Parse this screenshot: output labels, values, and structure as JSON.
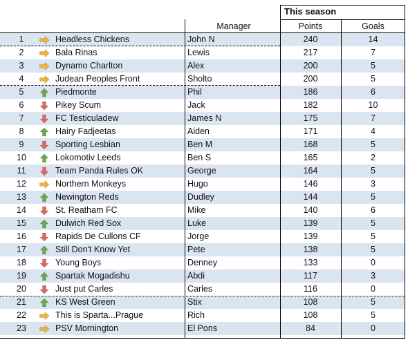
{
  "header": {
    "group_title": "This season",
    "columns": {
      "manager": "Manager",
      "points": "Points",
      "goals": "Goals"
    }
  },
  "colors": {
    "row_shade": "#dbe5f1",
    "arrow_same": "#f0b23c",
    "arrow_up": "#6aa84f",
    "arrow_down": "#e06666"
  },
  "rows": [
    {
      "pos": "1",
      "move": "same",
      "team": "Headless Chickens",
      "manager": "John N",
      "points": "240",
      "goals": "14"
    },
    {
      "pos": "2",
      "move": "same",
      "team": "Bala Rinas",
      "manager": "Lewis",
      "points": "217",
      "goals": "7"
    },
    {
      "pos": "3",
      "move": "same",
      "team": "Dynamo Charlton",
      "manager": "Alex",
      "points": "200",
      "goals": "5"
    },
    {
      "pos": "4",
      "move": "same",
      "team": "Judean Peoples Front",
      "manager": "Sholto",
      "points": "200",
      "goals": "5"
    },
    {
      "pos": "5",
      "move": "up",
      "team": "Piedmonte",
      "manager": "Phil",
      "points": "186",
      "goals": "6"
    },
    {
      "pos": "6",
      "move": "down",
      "team": "Pikey Scum",
      "manager": "Jack",
      "points": "182",
      "goals": "10"
    },
    {
      "pos": "7",
      "move": "down",
      "team": "FC Testiculadew",
      "manager": "James N",
      "points": "175",
      "goals": "7"
    },
    {
      "pos": "8",
      "move": "up",
      "team": "Hairy Fadjeetas",
      "manager": "Aiden",
      "points": "171",
      "goals": "4"
    },
    {
      "pos": "9",
      "move": "down",
      "team": "Sporting Lesbian",
      "manager": "Ben M",
      "points": "168",
      "goals": "5"
    },
    {
      "pos": "10",
      "move": "up",
      "team": "Lokomotiv Leeds",
      "manager": "Ben S",
      "points": "165",
      "goals": "2"
    },
    {
      "pos": "11",
      "move": "down",
      "team": "Team Panda Rules OK",
      "manager": "George",
      "points": "164",
      "goals": "5"
    },
    {
      "pos": "12",
      "move": "same",
      "team": "Northern Monkeys",
      "manager": "Hugo",
      "points": "146",
      "goals": "3"
    },
    {
      "pos": "13",
      "move": "up",
      "team": "Newington Reds",
      "manager": "Dudley",
      "points": "144",
      "goals": "5"
    },
    {
      "pos": "14",
      "move": "down",
      "team": "St. Reatham FC",
      "manager": "Mike",
      "points": "140",
      "goals": "6"
    },
    {
      "pos": "15",
      "move": "up",
      "team": "Dulwich Red Sox",
      "manager": "Luke",
      "points": "139",
      "goals": "5"
    },
    {
      "pos": "16",
      "move": "down",
      "team": "Rapids De Cullons CF",
      "manager": "Jorge",
      "points": "139",
      "goals": "5"
    },
    {
      "pos": "17",
      "move": "up",
      "team": "Still Don't Know Yet",
      "manager": "Pete",
      "points": "138",
      "goals": "5"
    },
    {
      "pos": "18",
      "move": "down",
      "team": "Young Boys",
      "manager": "Denney",
      "points": "133",
      "goals": "0"
    },
    {
      "pos": "19",
      "move": "up",
      "team": "Spartak Mogadishu",
      "manager": "Abdi",
      "points": "117",
      "goals": "3"
    },
    {
      "pos": "20",
      "move": "down",
      "team": "Just put Carles",
      "manager": "Carles",
      "points": "116",
      "goals": "0"
    },
    {
      "pos": "21",
      "move": "up",
      "team": "KS West Green",
      "manager": "Stix",
      "points": "108",
      "goals": "5"
    },
    {
      "pos": "22",
      "move": "same",
      "team": "This is Sparta...Prague",
      "manager": "Rich",
      "points": "108",
      "goals": "5"
    },
    {
      "pos": "23",
      "move": "same",
      "team": "PSV Mornington",
      "manager": "El Pons",
      "points": "84",
      "goals": "0"
    }
  ]
}
